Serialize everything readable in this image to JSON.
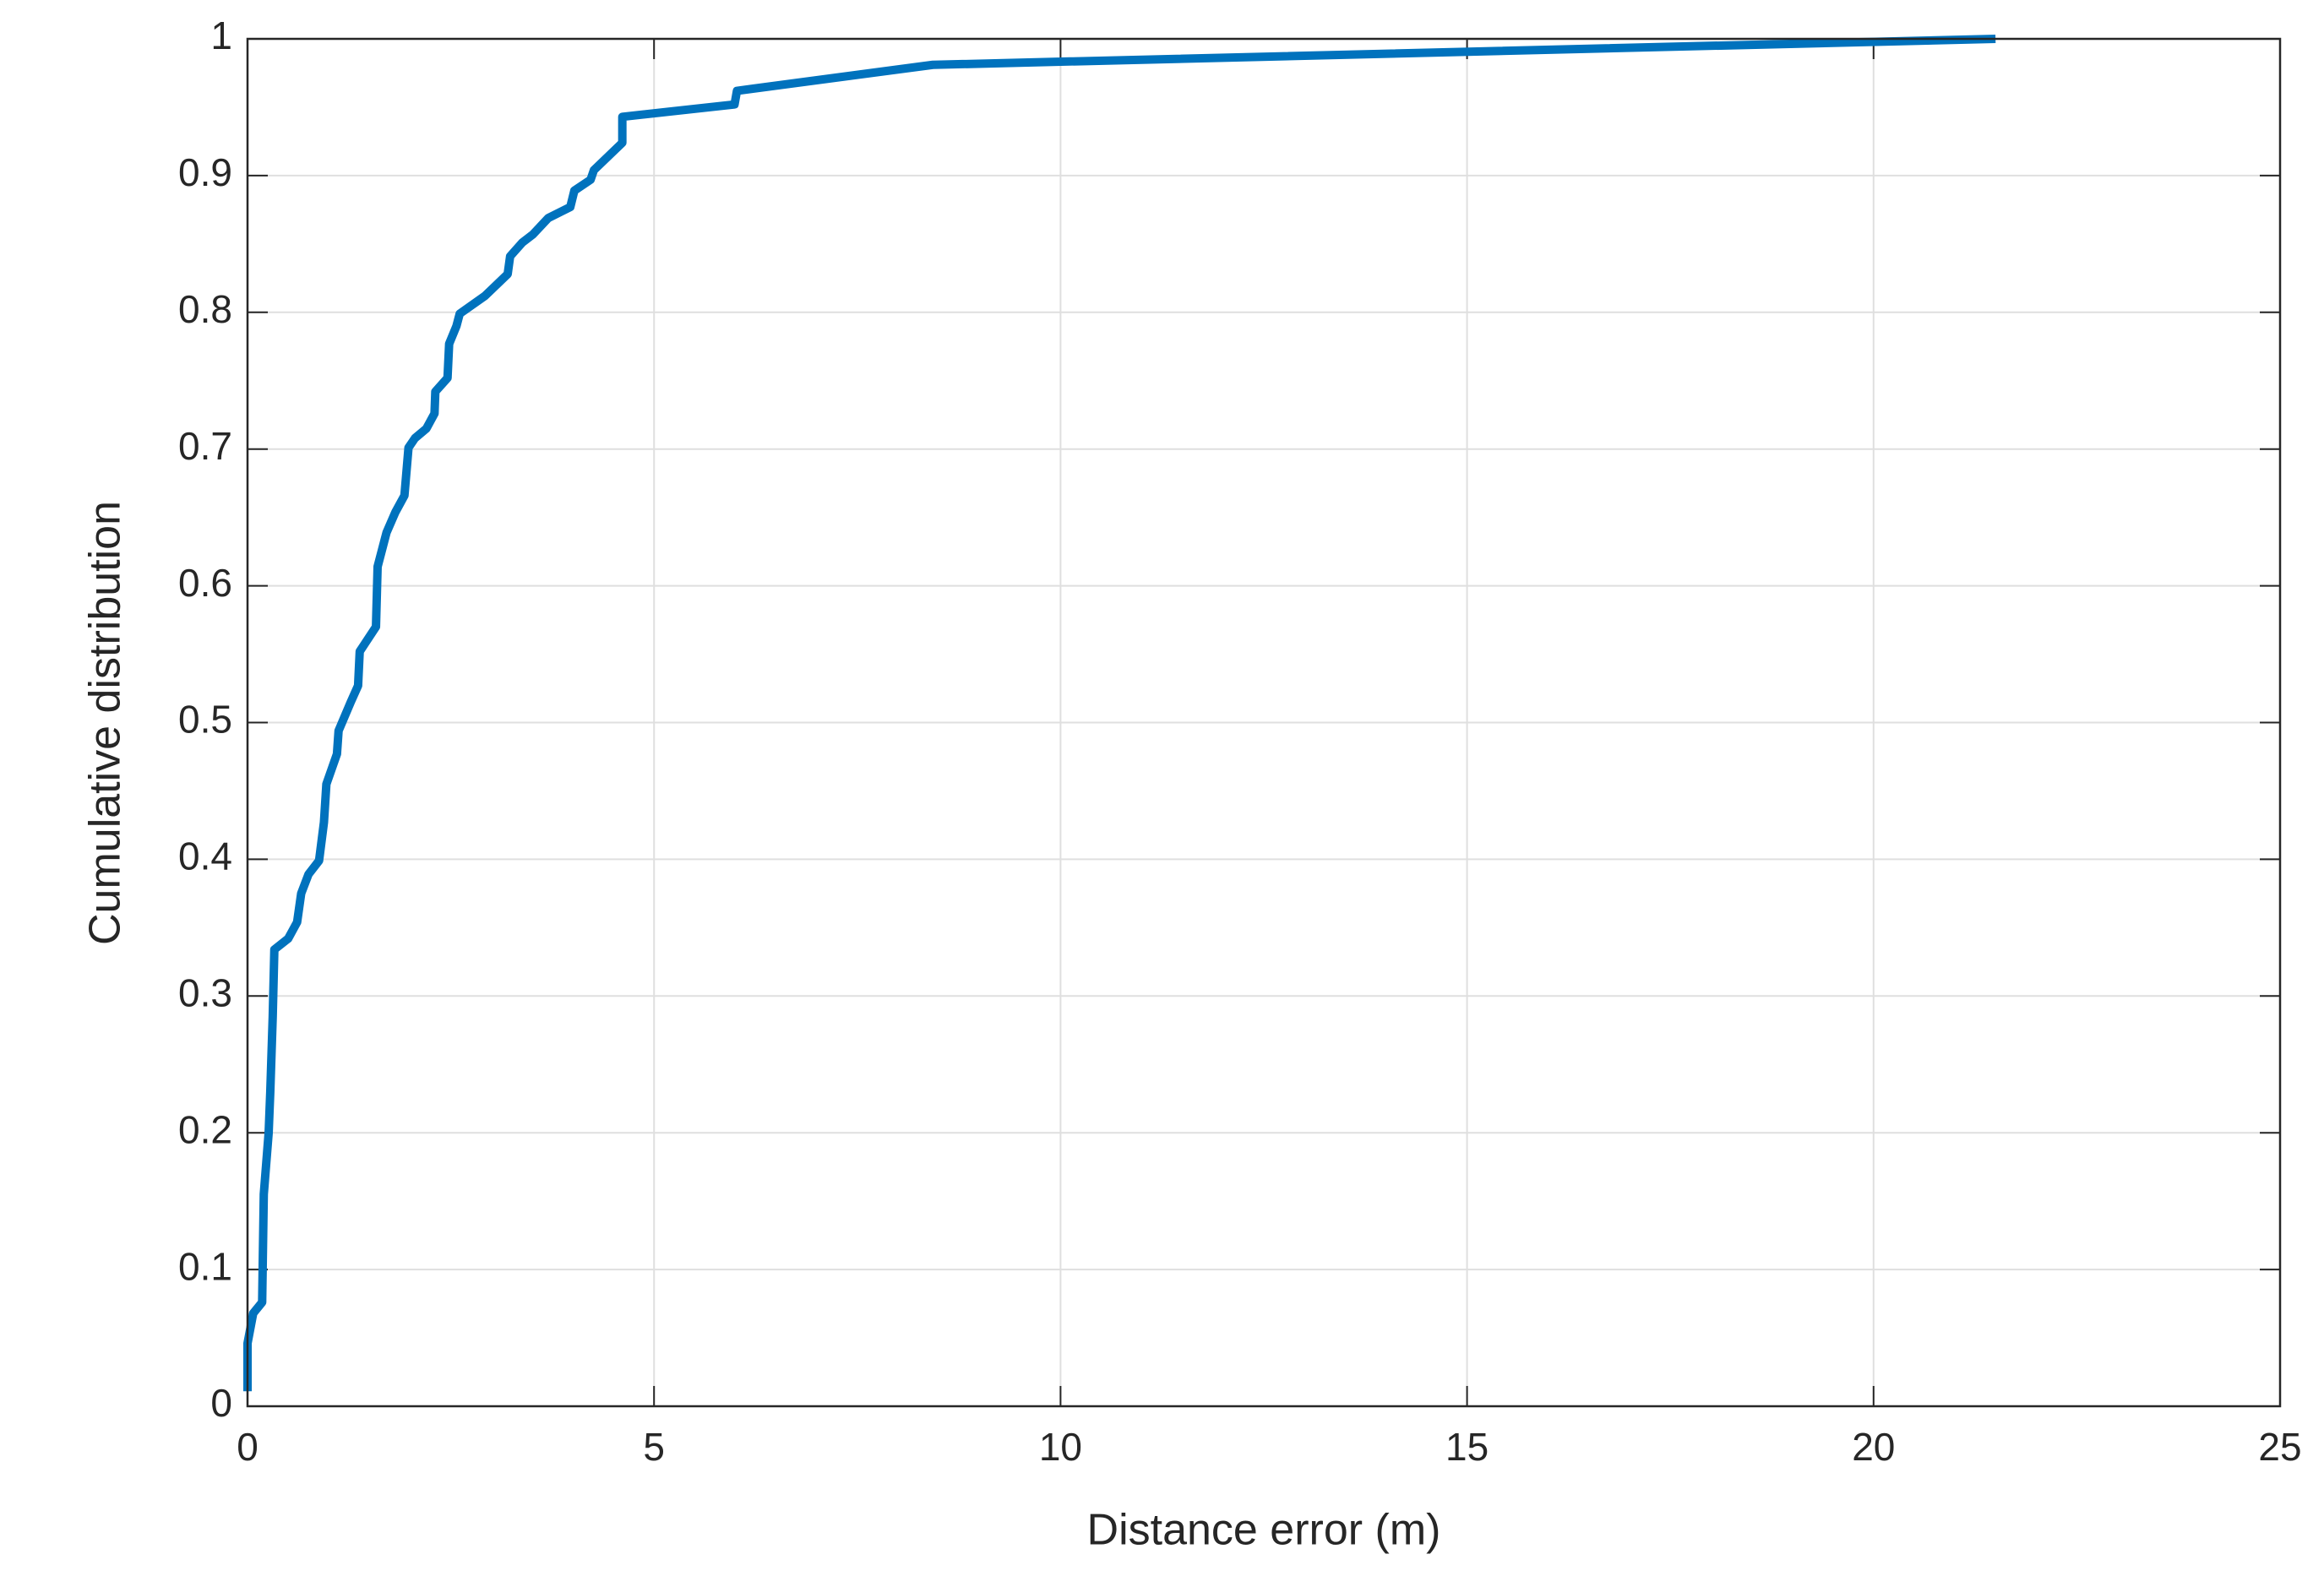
{
  "chart_data": {
    "type": "line",
    "xlabel": "Distance error (m)",
    "ylabel": "Cumulative distribution",
    "x": [
      0,
      0,
      0.07,
      0.18,
      0.2,
      0.26,
      0.28,
      0.31,
      0.33,
      0.5,
      0.61,
      0.66,
      0.75,
      0.88,
      0.94,
      0.97,
      1.1,
      1.12,
      1.27,
      1.36,
      1.38,
      1.58,
      1.6,
      1.71,
      1.82,
      1.93,
      1.98,
      2.06,
      2.2,
      2.3,
      2.31,
      2.46,
      2.48,
      2.57,
      2.61,
      2.92,
      3.2,
      3.23,
      3.38,
      3.51,
      3.7,
      3.97,
      4.02,
      4.22,
      4.26,
      4.61,
      4.61,
      5.99,
      6.02,
      8.43,
      21.5
    ],
    "values": [
      0.011,
      0.046,
      0.068,
      0.076,
      0.155,
      0.2,
      0.23,
      0.285,
      0.334,
      0.342,
      0.354,
      0.375,
      0.389,
      0.399,
      0.427,
      0.455,
      0.477,
      0.494,
      0.515,
      0.527,
      0.552,
      0.57,
      0.614,
      0.639,
      0.654,
      0.666,
      0.701,
      0.708,
      0.715,
      0.726,
      0.742,
      0.752,
      0.777,
      0.79,
      0.799,
      0.812,
      0.828,
      0.841,
      0.851,
      0.857,
      0.869,
      0.877,
      0.889,
      0.897,
      0.904,
      0.924,
      0.943,
      0.952,
      0.962,
      0.981,
      1.0
    ],
    "color": "#0072bd",
    "xlim": [
      0,
      25
    ],
    "ylim": [
      0,
      1
    ],
    "xticks": [
      0,
      5,
      10,
      15,
      20,
      25
    ],
    "yticks": [
      0,
      0.1,
      0.2,
      0.3,
      0.4,
      0.5,
      0.6,
      0.7,
      0.8,
      0.9,
      1
    ],
    "grid": true
  }
}
